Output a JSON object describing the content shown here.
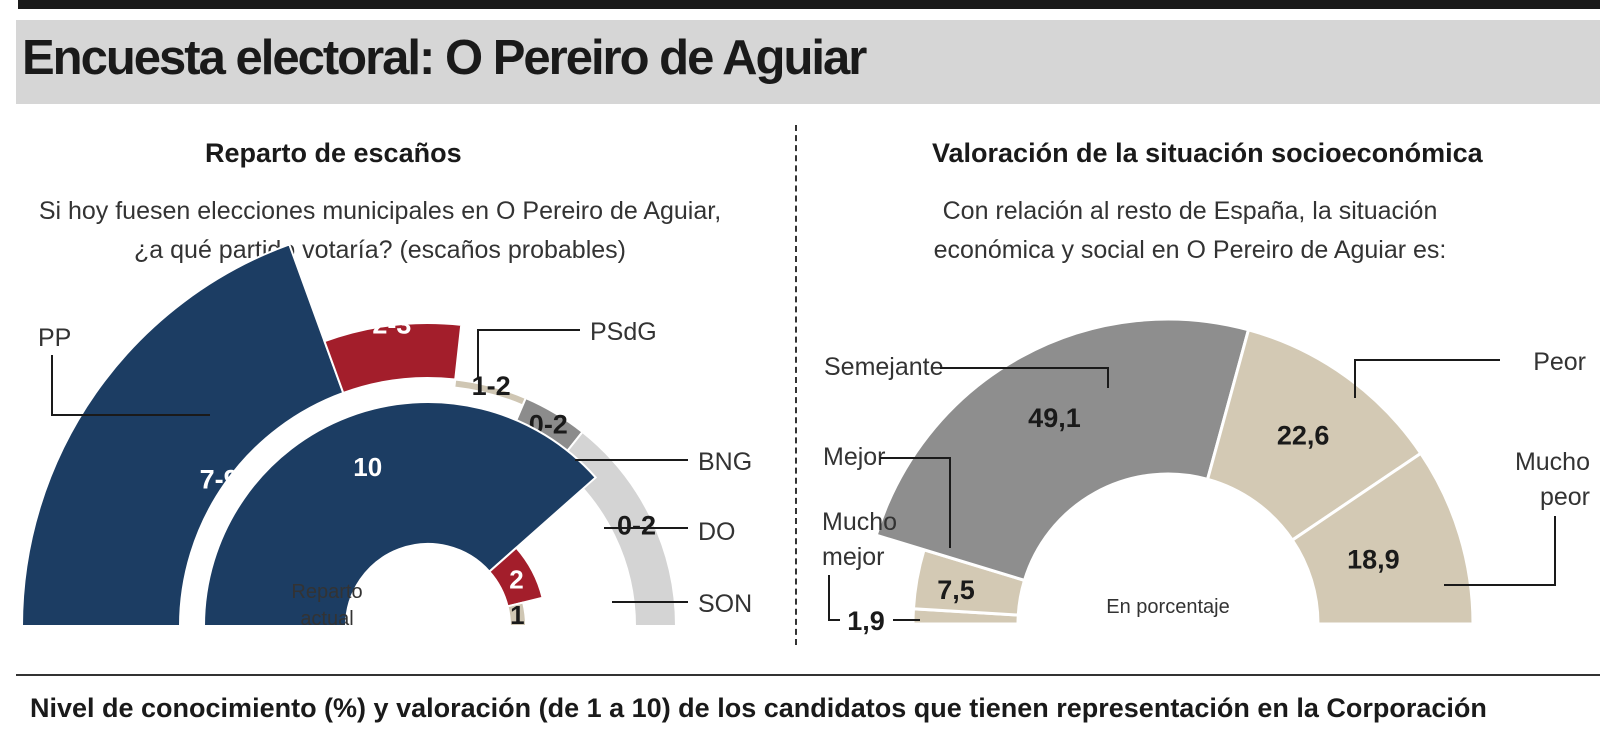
{
  "header": {
    "title": "Encuesta electoral: O Pereiro de Aguiar"
  },
  "left_panel": {
    "title": "Reparto de escaños",
    "subtitle_line1": "Si hoy fuesen elecciones municipales en O Pereiro de Aguiar,",
    "subtitle_line2": "¿a qué partido votaría? (escaños probables)",
    "inner_caption_line1": "Reparto",
    "inner_caption_line2": "actual"
  },
  "right_panel": {
    "title": "Valoración de la situación socioeconómica",
    "subtitle_line1": "Con relación al resto de España, la situación",
    "subtitle_line2": "económica y social en O Pereiro de Aguiar es:",
    "center_caption": "En porcentaje"
  },
  "footer": {
    "text": "Nivel de conocimiento (%) y valoración (de 1 a 10) de los candidatos que tienen representación en la Corporación"
  },
  "colors": {
    "PP": "#1c3d63",
    "PSdG": "#a31e2b",
    "BNG": "#cfc6b3",
    "DO": "#8c8c8c",
    "SON": "#d4d4d4",
    "Semejante": "#8e8e8e",
    "Peor": "#d3c9b4"
  },
  "chart_data": [
    {
      "type": "pie",
      "subtype": "half-donut",
      "title": "Reparto de escaños",
      "rings": [
        {
          "name": "escaños probables",
          "slices": [
            {
              "label": "PP",
              "value_label": "7-9",
              "weight": 0.389
            },
            {
              "label": "PSdG",
              "value_label": "2-3",
              "weight": 0.146
            },
            {
              "label": "BNG",
              "value_label": "1-2",
              "weight": 0.094
            },
            {
              "label": "DO",
              "value_label": "0-2",
              "weight": 0.085
            },
            {
              "label": "SON",
              "value_label": "0-2",
              "weight": 0.064
            }
          ]
        },
        {
          "name": "Reparto actual",
          "slices": [
            {
              "label": "PP",
              "value": 10
            },
            {
              "label": "PSdG",
              "value": 2
            },
            {
              "label": "BNG",
              "value": 1
            }
          ]
        }
      ]
    },
    {
      "type": "pie",
      "subtype": "half-donut",
      "title": "Valoración de la situación socioeconómica",
      "unit": "En porcentaje",
      "slices": [
        {
          "label": "Mucho mejor",
          "value": 1.9,
          "value_label": "1,9"
        },
        {
          "label": "Mejor",
          "value": 7.5,
          "value_label": "7,5"
        },
        {
          "label": "Semejante",
          "value": 49.1,
          "value_label": "49,1"
        },
        {
          "label": "Peor",
          "value": 22.6,
          "value_label": "22,6"
        },
        {
          "label": "Mucho peor",
          "value": 18.9,
          "value_label": "18,9"
        }
      ]
    }
  ]
}
